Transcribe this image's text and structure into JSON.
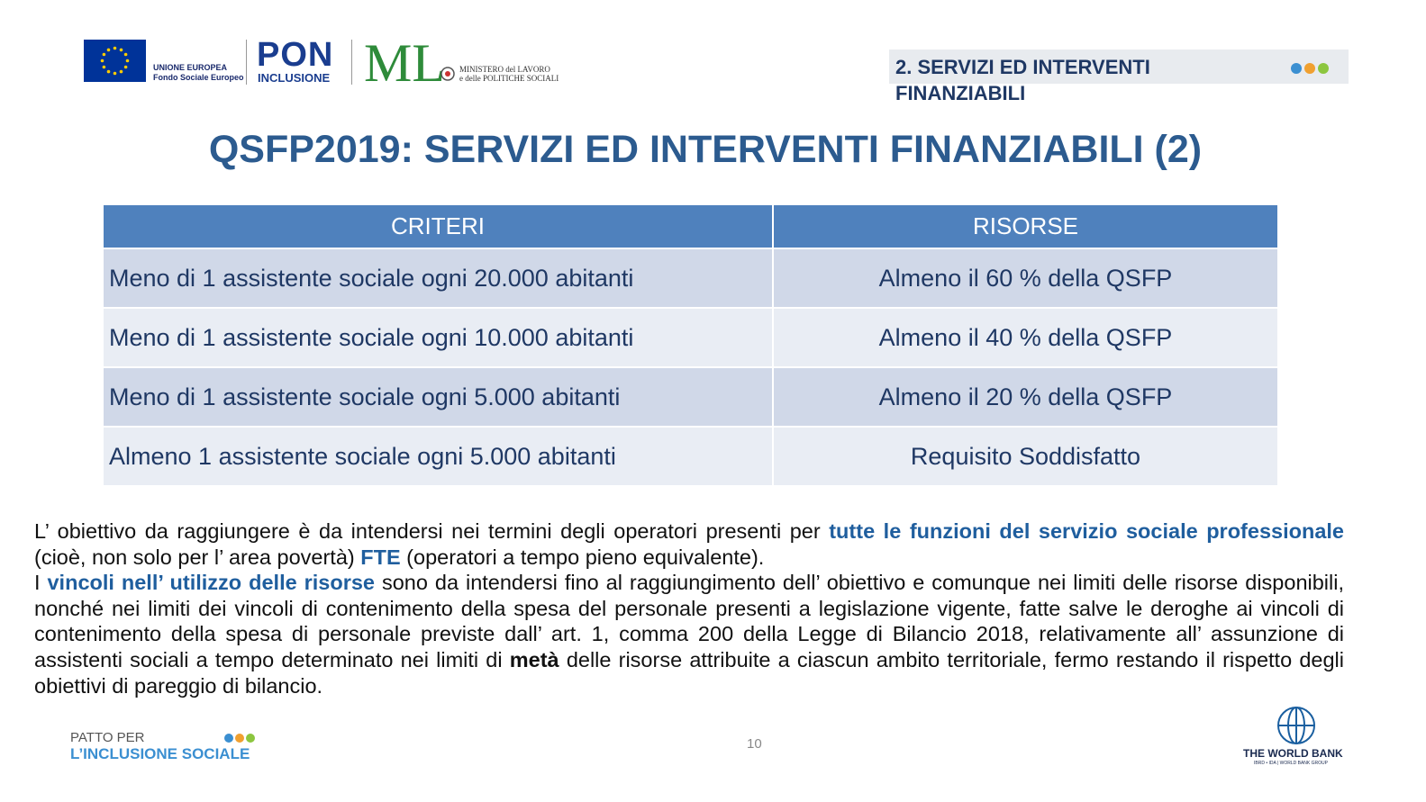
{
  "header": {
    "eu_logo": {
      "line1": "UNIONE EUROPEA",
      "line2": "Fondo Sociale Europeo"
    },
    "pon_logo": {
      "word": "PON",
      "sub": "INCLUSIONE"
    },
    "ministry_logo": {
      "letters": "ML",
      "line1": "MINISTERO del LAVORO",
      "line2": "e delle POLITICHE SOCIALI"
    },
    "section_tag": "2. SERVIZI ED INTERVENTI FINANZIABILI"
  },
  "title": "QSFP2019: SERVIZI ED INTERVENTI FINANZIABILI (2)",
  "table": {
    "header": [
      "CRITERI",
      "RISORSE"
    ],
    "rows": [
      [
        "Meno di 1 assistente sociale ogni 20.000 abitanti",
        "Almeno il 60 % della QSFP"
      ],
      [
        "Meno di 1 assistente sociale ogni 10.000 abitanti",
        "Almeno il 40 % della QSFP"
      ],
      [
        "Meno di 1 assistente sociale ogni 5.000 abitanti",
        "Almeno il 20 % della QSFP"
      ],
      [
        "Almeno 1 assistente sociale ogni 5.000 abitanti",
        "Requisito Soddisfatto"
      ]
    ]
  },
  "body": {
    "paragraphs": [
      [
        {
          "text": "L’ obiettivo da raggiungere è da intendersi nei termini degli operatori presenti per ",
          "style": "plain"
        },
        {
          "text": "tutte le funzioni del servizio sociale professionale",
          "style": "highlight"
        },
        {
          "text": " (cioè, non solo per l’ area povertà) ",
          "style": "plain"
        },
        {
          "text": "FTE",
          "style": "highlight"
        },
        {
          "text": " (operatori a tempo pieno equivalente).",
          "style": "plain"
        }
      ],
      [
        {
          "text": "I ",
          "style": "plain"
        },
        {
          "text": "vincoli nell’ utilizzo delle risorse",
          "style": "highlight"
        },
        {
          "text": " sono da intendersi fino al raggiungimento dell’ obiettivo e comunque nei limiti delle risorse disponibili, nonché nei limiti dei vincoli di contenimento della spesa del personale presenti a legislazione vigente, fatte salve le deroghe ai vincoli di contenimento della spesa di personale previste dall’ art. 1, comma 200 della Legge di Bilancio 2018, relativamente all’ assunzione  di assistenti sociali a tempo determinato nei limiti di ",
          "style": "plain"
        },
        {
          "text": "metà",
          "style": "bold"
        },
        {
          "text": " delle risorse attribuite a ciascun ambito territoriale, fermo restando il rispetto degli obiettivi di pareggio di bilancio.",
          "style": "plain"
        }
      ]
    ]
  },
  "footer": {
    "patto_line1": "PATTO PER",
    "patto_line2": "L’INCLUSIONE SOCIALE",
    "page_number": "10",
    "world_bank": "THE WORLD BANK",
    "world_bank_sub": "IBRD • IDA | WORLD BANK GROUP"
  }
}
